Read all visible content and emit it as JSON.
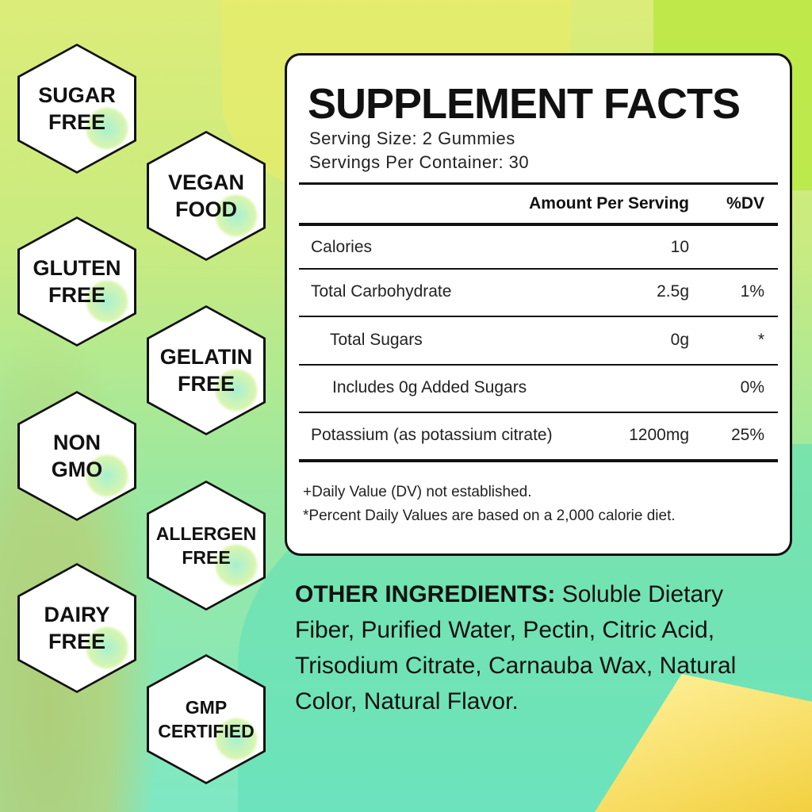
{
  "badges": [
    {
      "line1": "SUGAR",
      "line2": "FREE"
    },
    {
      "line1": "VEGAN",
      "line2": "FOOD"
    },
    {
      "line1": "GLUTEN",
      "line2": "FREE"
    },
    {
      "line1": "GELATIN",
      "line2": "FREE"
    },
    {
      "line1": "NON",
      "line2": "GMO"
    },
    {
      "line1": "ALLERGEN",
      "line2": "FREE"
    },
    {
      "line1": "DAIRY",
      "line2": "FREE"
    },
    {
      "line1": "GMP",
      "line2": "CERTIFIED"
    }
  ],
  "facts": {
    "title": "SUPPLEMENT FACTS",
    "serving_size": "Serving Size: 2 Gummies",
    "servings_per_container": "Servings Per Container: 30",
    "header": {
      "amount": "Amount Per Serving",
      "dv": "%DV"
    },
    "rows": [
      {
        "name": "Calories",
        "amount": "10",
        "dv": ""
      },
      {
        "name": "Total Carbohydrate",
        "amount": "2.5g",
        "dv": "1%"
      },
      {
        "name": "Total Sugars",
        "amount": "0g",
        "dv": "*"
      },
      {
        "name": "Includes 0g Added Sugars",
        "amount": "",
        "dv": "0%"
      },
      {
        "name": "Potassium (as potassium citrate)",
        "amount": "1200mg",
        "dv": "25%"
      }
    ],
    "footnote1": "+Daily Value (DV) not established.",
    "footnote2": "*Percent Daily Values are based on a 2,000 calorie diet."
  },
  "ingredients": {
    "label": "OTHER INGREDIENTS:",
    "text": " Soluble Dietary Fiber, Purified Water, Pectin, Citric Acid, Trisodium Citrate, Carnauba Wax, Natural Color, Natural Flavor."
  }
}
